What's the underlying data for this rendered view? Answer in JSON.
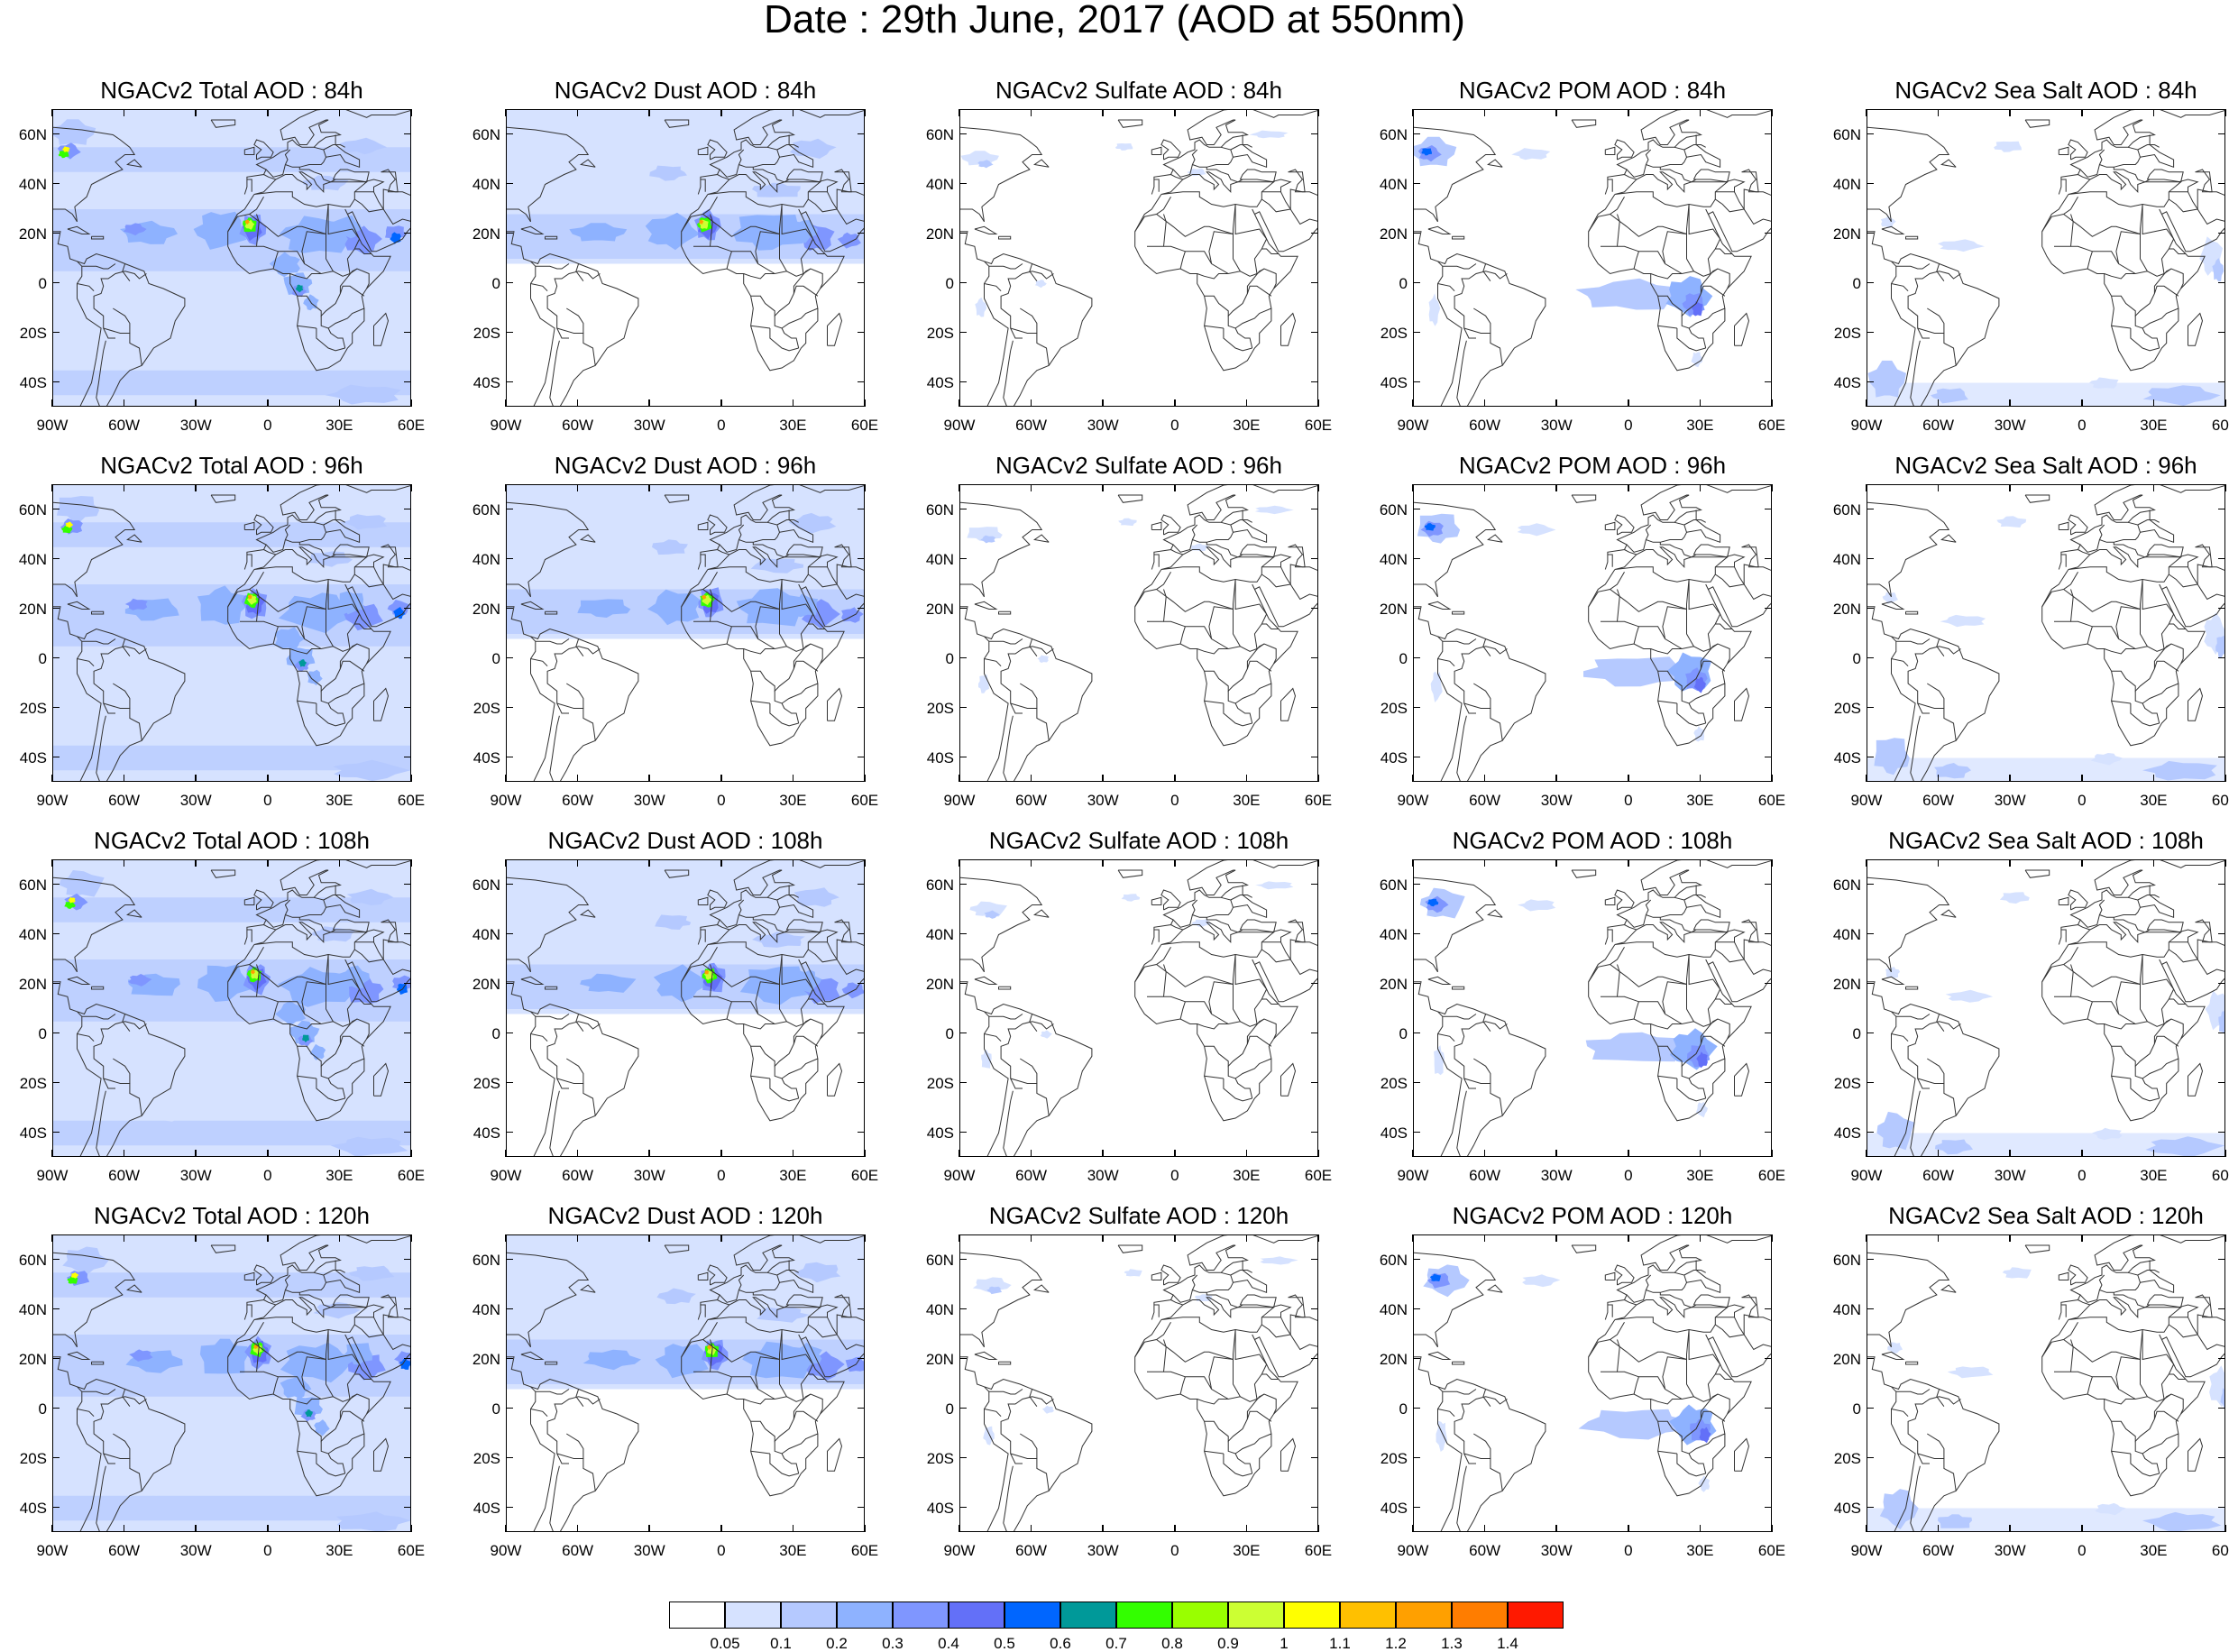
{
  "title": "Date : 29th June, 2017 (AOD at 550nm)",
  "chart_data": {
    "type": "heatmap",
    "description_axis": {
      "lat_ticks": [
        "60N",
        "40N",
        "20N",
        "0",
        "20S",
        "40S"
      ],
      "lon_ticks": [
        "90W",
        "60W",
        "30W",
        "0",
        "30E",
        "60E"
      ],
      "lat_range": [
        -50,
        70
      ],
      "lon_range": [
        -90,
        60
      ]
    },
    "colorbar": {
      "levels": [
        "0.05",
        "0.1",
        "0.2",
        "0.3",
        "0.4",
        "0.5",
        "0.6",
        "0.7",
        "0.8",
        "0.9",
        "1",
        "1.1",
        "1.2",
        "1.3",
        "1.4"
      ],
      "colors": [
        "#ffffff",
        "#d6e2ff",
        "#b5c9ff",
        "#8eb2ff",
        "#7f96ff",
        "#6370f8",
        "#0066ff",
        "#009999",
        "#33ff00",
        "#99ff00",
        "#ccff33",
        "#ffff00",
        "#ffc000",
        "#ffa000",
        "#ff7d00",
        "#ff1900"
      ]
    },
    "rows": [
      {
        "lead": "84h",
        "panels": [
          {
            "title": "NGACv2 Total AOD : 84h",
            "kind": "total"
          },
          {
            "title": "NGACv2 Dust AOD : 84h",
            "kind": "dust"
          },
          {
            "title": "NGACv2 Sulfate AOD : 84h",
            "kind": "sulfate"
          },
          {
            "title": "NGACv2 POM AOD : 84h",
            "kind": "pom"
          },
          {
            "title": "NGACv2 Sea Salt AOD : 84h",
            "kind": "seasalt"
          }
        ]
      },
      {
        "lead": "96h",
        "panels": [
          {
            "title": "NGACv2 Total AOD : 96h",
            "kind": "total"
          },
          {
            "title": "NGACv2 Dust AOD : 96h",
            "kind": "dust"
          },
          {
            "title": "NGACv2 Sulfate AOD : 96h",
            "kind": "sulfate"
          },
          {
            "title": "NGACv2 POM AOD : 96h",
            "kind": "pom"
          },
          {
            "title": "NGACv2 Sea Salt AOD : 96h",
            "kind": "seasalt"
          }
        ]
      },
      {
        "lead": "108h",
        "panels": [
          {
            "title": "NGACv2 Total AOD : 108h",
            "kind": "total"
          },
          {
            "title": "NGACv2 Dust AOD : 108h",
            "kind": "dust"
          },
          {
            "title": "NGACv2 Sulfate AOD : 108h",
            "kind": "sulfate"
          },
          {
            "title": "NGACv2 POM AOD : 108h",
            "kind": "pom"
          },
          {
            "title": "NGACv2 Sea Salt AOD : 108h",
            "kind": "seasalt"
          }
        ]
      },
      {
        "lead": "120h",
        "panels": [
          {
            "title": "NGACv2 Total AOD : 120h",
            "kind": "total"
          },
          {
            "title": "NGACv2 Dust AOD : 120h",
            "kind": "dust"
          },
          {
            "title": "NGACv2 Sulfate AOD : 120h",
            "kind": "sulfate"
          },
          {
            "title": "NGACv2 POM AOD : 120h",
            "kind": "pom"
          },
          {
            "title": "NGACv2 Sea Salt  AOD : 120h",
            "kind": "seasalt"
          }
        ]
      }
    ]
  }
}
